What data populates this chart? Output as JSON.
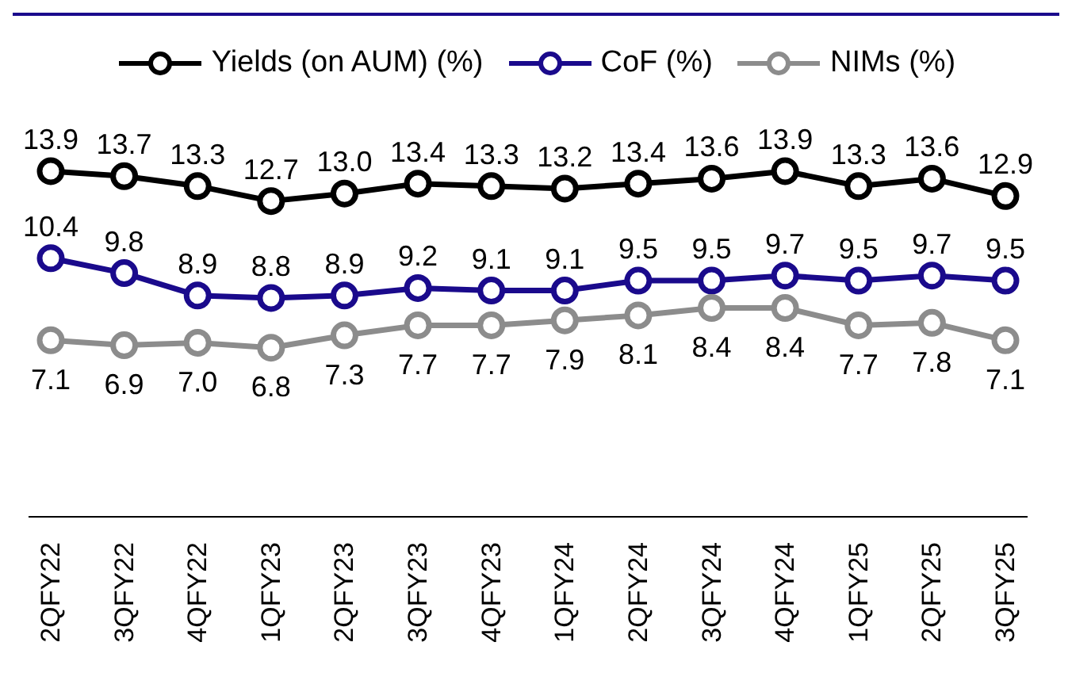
{
  "chart_data": {
    "type": "line",
    "categories": [
      "2QFY22",
      "3QFY22",
      "4QFY22",
      "1QFY23",
      "2QFY23",
      "3QFY23",
      "4QFY23",
      "1QFY24",
      "2QFY24",
      "3QFY24",
      "4QFY24",
      "1QFY25",
      "2QFY25",
      "3QFY25"
    ],
    "series": [
      {
        "name": "Yields (on AUM) (%)",
        "color": "#000000",
        "values": [
          13.9,
          13.7,
          13.3,
          12.7,
          13.0,
          13.4,
          13.3,
          13.2,
          13.4,
          13.6,
          13.9,
          13.3,
          13.6,
          12.9
        ],
        "value_labels": [
          "13.9",
          "13.7",
          "13.3",
          "12.7",
          "13.0",
          "13.4",
          "13.3",
          "13.2",
          "13.4",
          "13.6",
          "13.9",
          "13.3",
          "13.6",
          "12.9"
        ]
      },
      {
        "name": "CoF (%)",
        "color": "#1a0a8c",
        "values": [
          10.4,
          9.8,
          8.9,
          8.8,
          8.9,
          9.2,
          9.1,
          9.1,
          9.5,
          9.5,
          9.7,
          9.5,
          9.7,
          9.5
        ],
        "value_labels": [
          "10.4",
          "9.8",
          "8.9",
          "8.8",
          "8.9",
          "9.2",
          "9.1",
          "9.1",
          "9.5",
          "9.5",
          "9.7",
          "9.5",
          "9.7",
          "9.5"
        ]
      },
      {
        "name": "NIMs (%)",
        "color": "#8c8c8c",
        "values": [
          7.1,
          6.9,
          7.0,
          6.8,
          7.3,
          7.7,
          7.7,
          7.9,
          8.1,
          8.4,
          8.4,
          7.7,
          7.8,
          7.1
        ],
        "value_labels": [
          "7.1",
          "6.9",
          "7.0",
          "6.8",
          "7.3",
          "7.7",
          "7.7",
          "7.9",
          "8.1",
          "8.4",
          "8.4",
          "7.7",
          "7.8",
          "7.1"
        ]
      }
    ],
    "tick_labels": "x",
    "marker": "circle",
    "line_style": "solid",
    "grid": false,
    "legend": "top"
  }
}
